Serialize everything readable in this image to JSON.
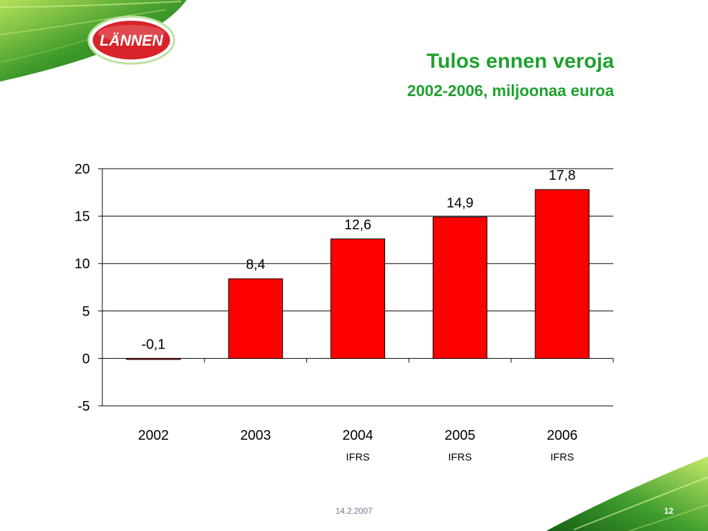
{
  "logo": {
    "text": "LÄNNEN"
  },
  "header": {
    "title": "Tulos ennen veroja",
    "subtitle": "2002-2006, miljoonaa euroa"
  },
  "colors": {
    "accent_green": "#1fa12f",
    "bar_red": "#ff0000",
    "logo_red": "#d8232a"
  },
  "chart_data": {
    "type": "bar",
    "categories": [
      "2002",
      "2003",
      "2004",
      "2005",
      "2006"
    ],
    "category_notes": [
      "",
      "",
      "IFRS",
      "IFRS",
      "IFRS"
    ],
    "values": [
      -0.1,
      8.4,
      12.6,
      14.9,
      17.8
    ],
    "value_labels": [
      "-0,1",
      "8,4",
      "12,6",
      "14,9",
      "17,8"
    ],
    "yticks": [
      20,
      15,
      10,
      5,
      0,
      -5
    ],
    "ylim": [
      -5,
      20
    ],
    "grid": true,
    "bar_color": "#ff0000"
  },
  "footer": {
    "date": "14.2.2007",
    "page": "12"
  }
}
